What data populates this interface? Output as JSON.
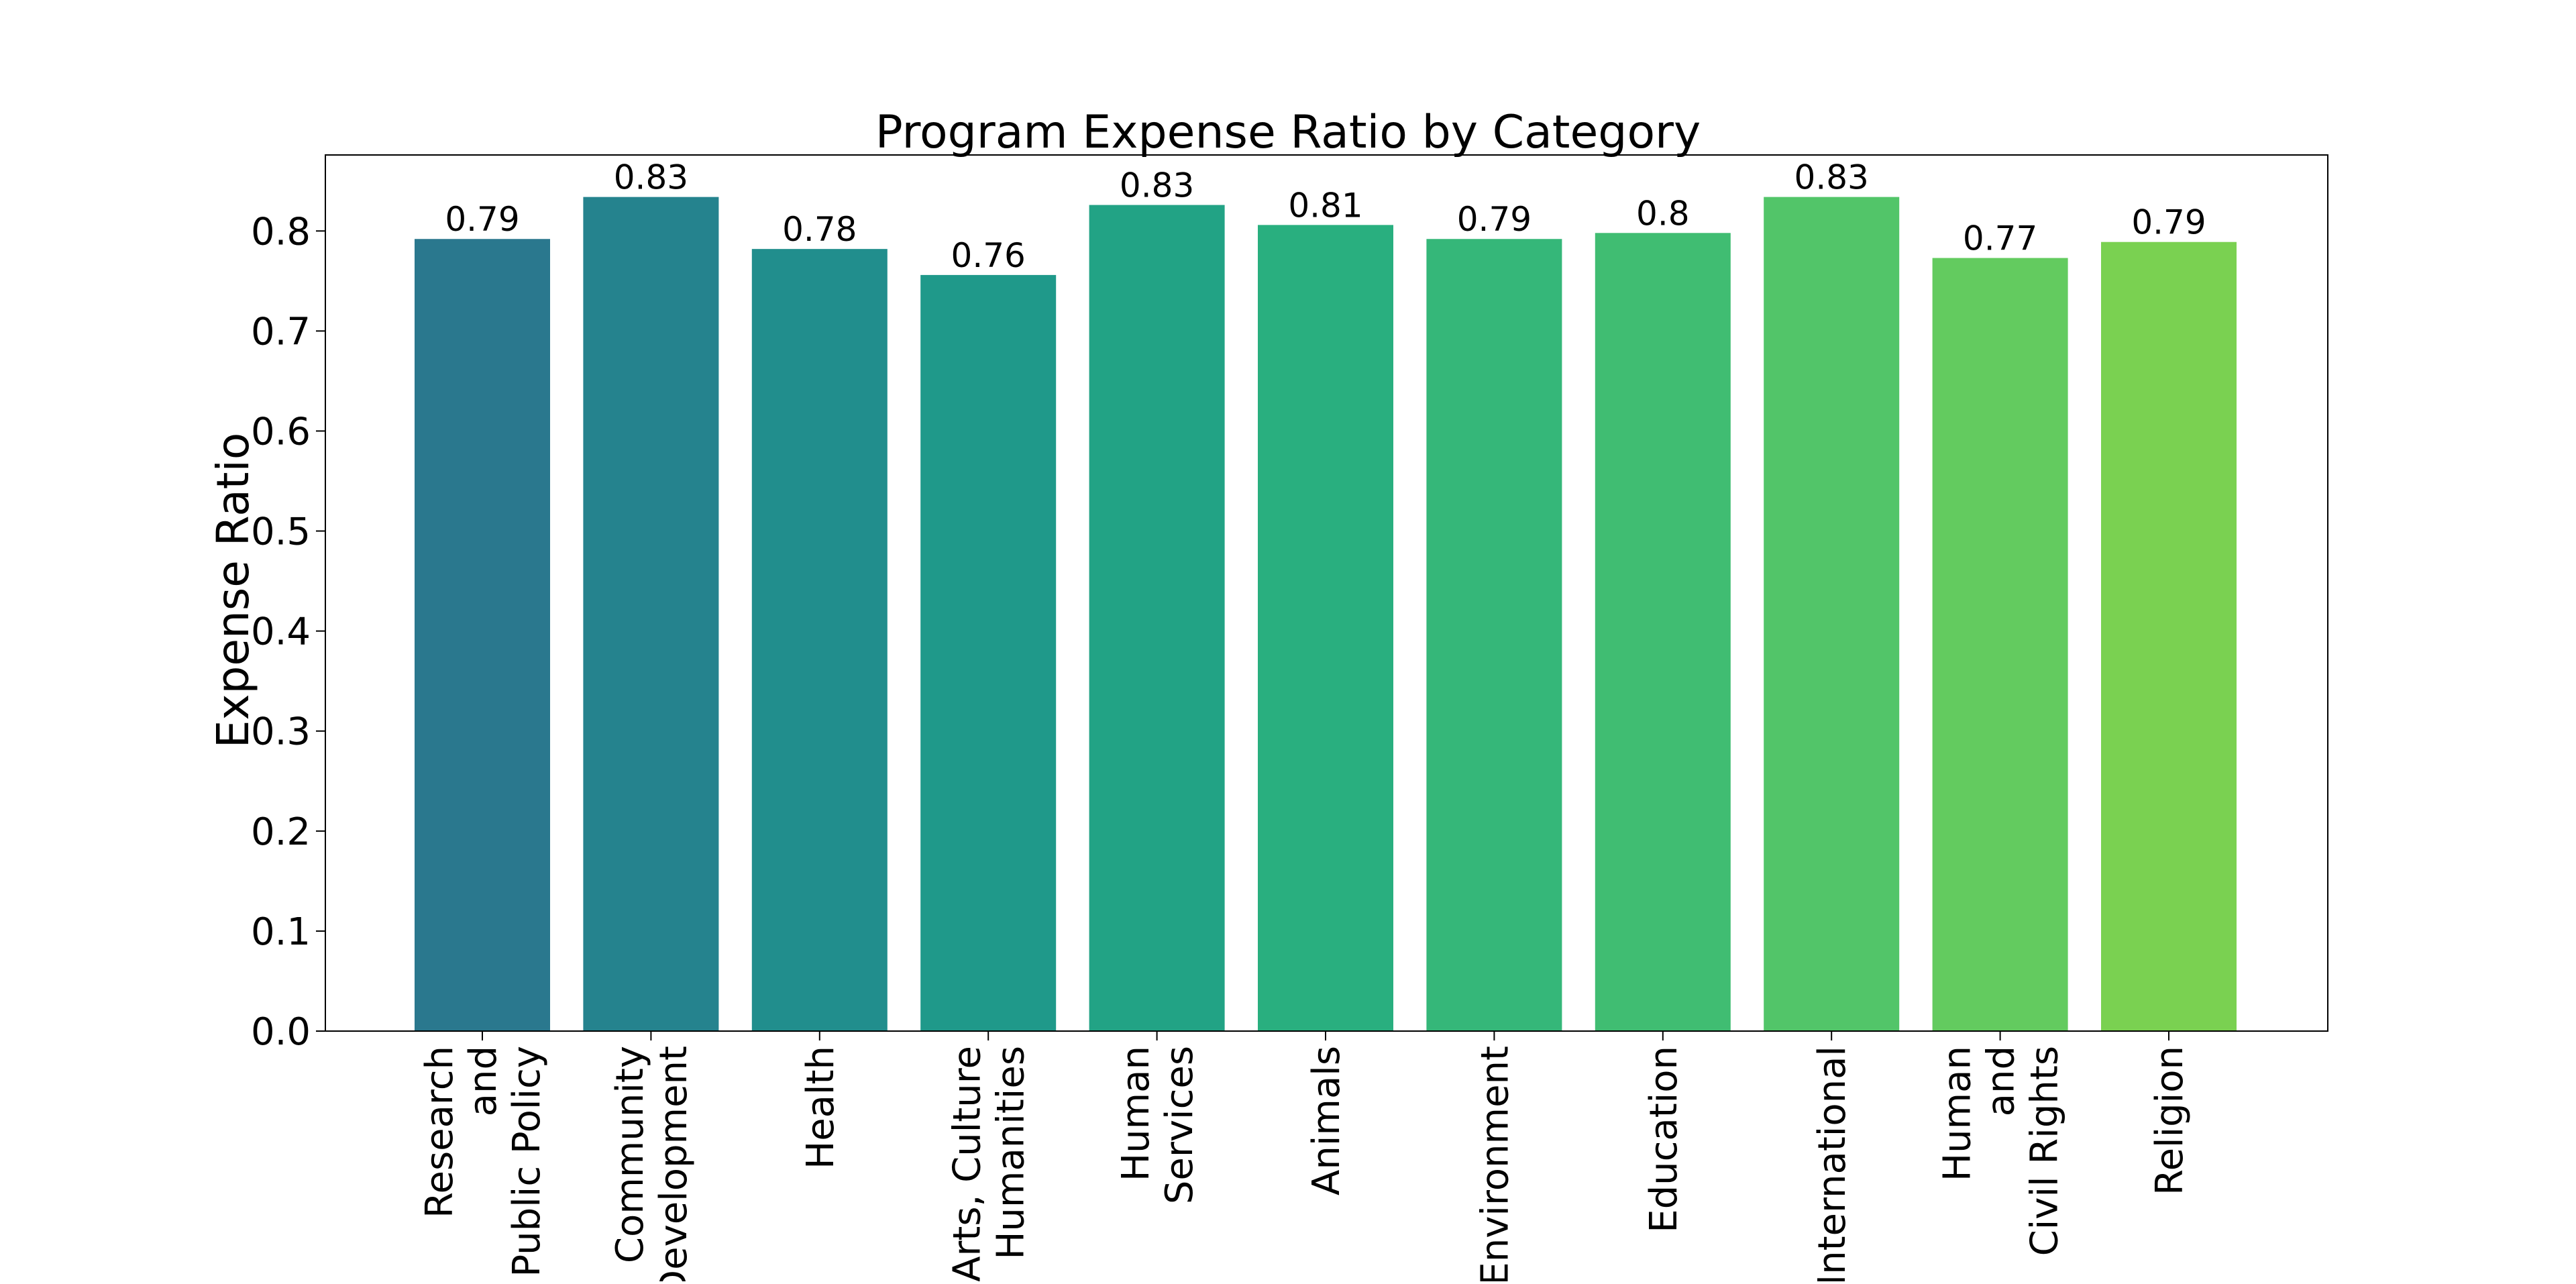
{
  "chart_data": {
    "type": "bar",
    "title": "Program Expense Ratio by Category",
    "xlabel": "",
    "ylabel": "Expense Ratio",
    "ylim": [
      0,
      0.876
    ],
    "yticks": [
      "0.0",
      "0.1",
      "0.2",
      "0.3",
      "0.4",
      "0.5",
      "0.6",
      "0.7",
      "0.8"
    ],
    "grid": false,
    "legend": false,
    "categories": [
      [
        "Research",
        "and",
        "Public Policy"
      ],
      [
        "Community",
        "Development"
      ],
      [
        "Health"
      ],
      [
        "Arts, Culture",
        "Humanities"
      ],
      [
        "Human",
        "Services"
      ],
      [
        "Animals"
      ],
      [
        "Environment"
      ],
      [
        "Education"
      ],
      [
        "International"
      ],
      [
        "Human",
        "and",
        "Civil Rights"
      ],
      [
        "Religion"
      ]
    ],
    "values": [
      0.792,
      0.834,
      0.782,
      0.756,
      0.826,
      0.806,
      0.792,
      0.798,
      0.834,
      0.773,
      0.789
    ],
    "value_labels": [
      "0.79",
      "0.83",
      "0.78",
      "0.76",
      "0.83",
      "0.81",
      "0.79",
      "0.8",
      "0.83",
      "0.77",
      "0.79"
    ],
    "colors": [
      "#2a788e",
      "#25838e",
      "#218e8d",
      "#1f998a",
      "#22a385",
      "#29af7f",
      "#35b779",
      "#40bd72",
      "#52c569",
      "#63cb5f",
      "#7ad151"
    ]
  }
}
